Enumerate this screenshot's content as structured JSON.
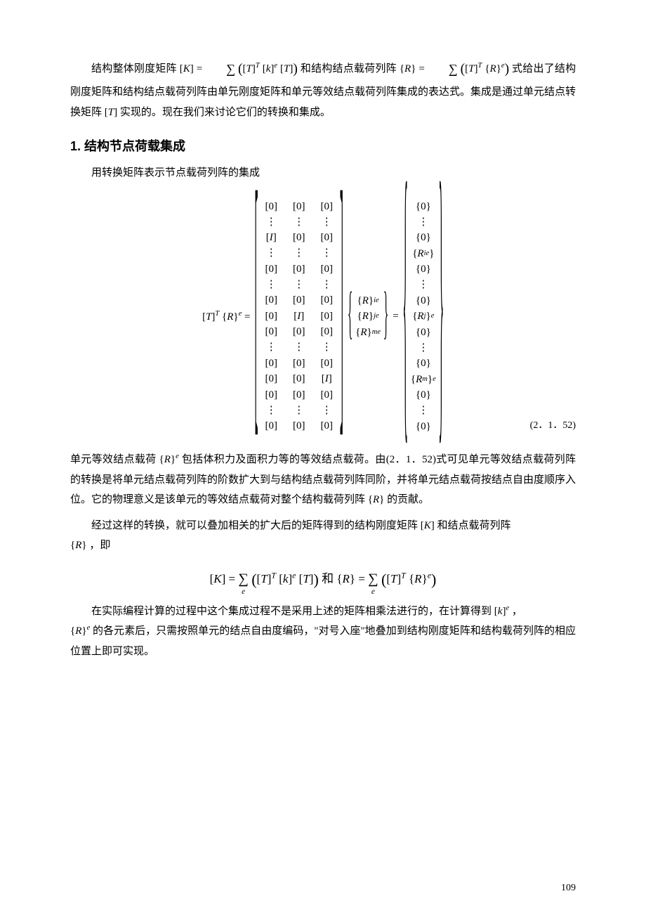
{
  "colors": {
    "text": "#000000",
    "background": "#ffffff"
  },
  "typography": {
    "body_font": "SimSun",
    "math_font": "Times New Roman",
    "heading_font": "SimHei",
    "body_fontsize_pt": 11,
    "heading_fontsize_pt": 14
  },
  "para1_open": "结构整体刚度矩阵",
  "eq_K_inline": "[K] = ∑ₑ ([T]ᵀ[k]ᵉ[T])",
  "para1_mid": "和结构结点载荷列阵",
  "eq_R_inline": "{R} = ∑ₑ ([T]ᵀ{R}ᵉ)",
  "para1_tail": "式给出了结构刚度矩阵和结构结点载荷列阵由单元刚度矩阵和单元等效结点载荷列阵集成的表达式。集成是通过单元结点转换矩阵",
  "T_inline": "[T]",
  "para1_end": "实现的。现在我们来讨论它们的转换和集成。",
  "heading1": "1.  结构节点荷载集成",
  "para2": "用转换矩阵表示节点载荷列阵的集成",
  "big_equation": {
    "lhs": "[T]ᵀ{R}ᵉ =",
    "matrix_rows": [
      [
        "[0]",
        "[0]",
        "[0]"
      ],
      [
        "⋮",
        "⋮",
        "⋮"
      ],
      [
        "[I]",
        "[0]",
        "[0]"
      ],
      [
        "⋮",
        "⋮",
        "⋮"
      ],
      [
        "[0]",
        "[0]",
        "[0]"
      ],
      [
        "⋮",
        "⋮",
        "⋮"
      ],
      [
        "[0]",
        "[0]",
        "[0]"
      ],
      [
        "[0]",
        "[I]",
        "[0]"
      ],
      [
        "[0]",
        "[0]",
        "[0]"
      ],
      [
        "⋮",
        "⋮",
        "⋮"
      ],
      [
        "[0]",
        "[0]",
        "[0]"
      ],
      [
        "[0]",
        "[0]",
        "[I]"
      ],
      [
        "[0]",
        "[0]",
        "[0]"
      ],
      [
        "⋮",
        "⋮",
        "⋮"
      ],
      [
        "[0]",
        "[0]",
        "[0]"
      ]
    ],
    "vec_in": [
      "{R}ᵢᵉ",
      "{R}ⱼᵉ",
      "{R}ₘᵉ"
    ],
    "eq": "=",
    "vec_out": [
      "{0}",
      "⋮",
      "{0}",
      "{Rᵢᵉ}",
      "{0}",
      "⋮",
      "{0}",
      "{Rⱼ}ᵉ",
      "{0}",
      "⋮",
      "{0}",
      "{Rₘ}ᵉ",
      "{0}",
      "⋮",
      "{0}"
    ],
    "number": "(2．1．52)"
  },
  "para3_a": "单元等效结点载荷",
  "Re_inline": "{R}ᵉ",
  "para3_b": "包括体积力及面积力等的等效结点载荷。由(2．1．52)式可见单元等效结点载荷列阵的转换是将单元结点载荷列阵的阶数扩大到与结构结点载荷列阵同阶，并将单元结点载荷按结点自由度顺序入位。它的物理意义是该单元的等效结点载荷对整个结构载荷列阵",
  "R_inline": "{R}",
  "para3_c": "的贡献。",
  "para4_a": "经过这样的转换，就可以叠加相关的扩大后的矩阵得到的结构刚度矩阵",
  "K_inline": "[K]",
  "para4_b": "和结点载荷列阵",
  "para4_c": "，即",
  "eq_center": "[K] = ∑ₑ ([T]ᵀ[k]ᵉ[T]) 和 {R} = ∑ₑ ([T]ᵀ{R}ᵉ)",
  "para5_a": "在实际编程计算的过程中这个集成过程不是采用上述的矩阵相乘法进行的，在计算得到",
  "k_e_inline": "[k]ᵉ",
  "para5_b": "，",
  "para5_c": "的各元素后，只需按照单元的结点自由度编码，\"对号入座\"地叠加到结构刚度矩阵和结构载荷列阵的相应位置上即可实现。",
  "page_number": "109"
}
